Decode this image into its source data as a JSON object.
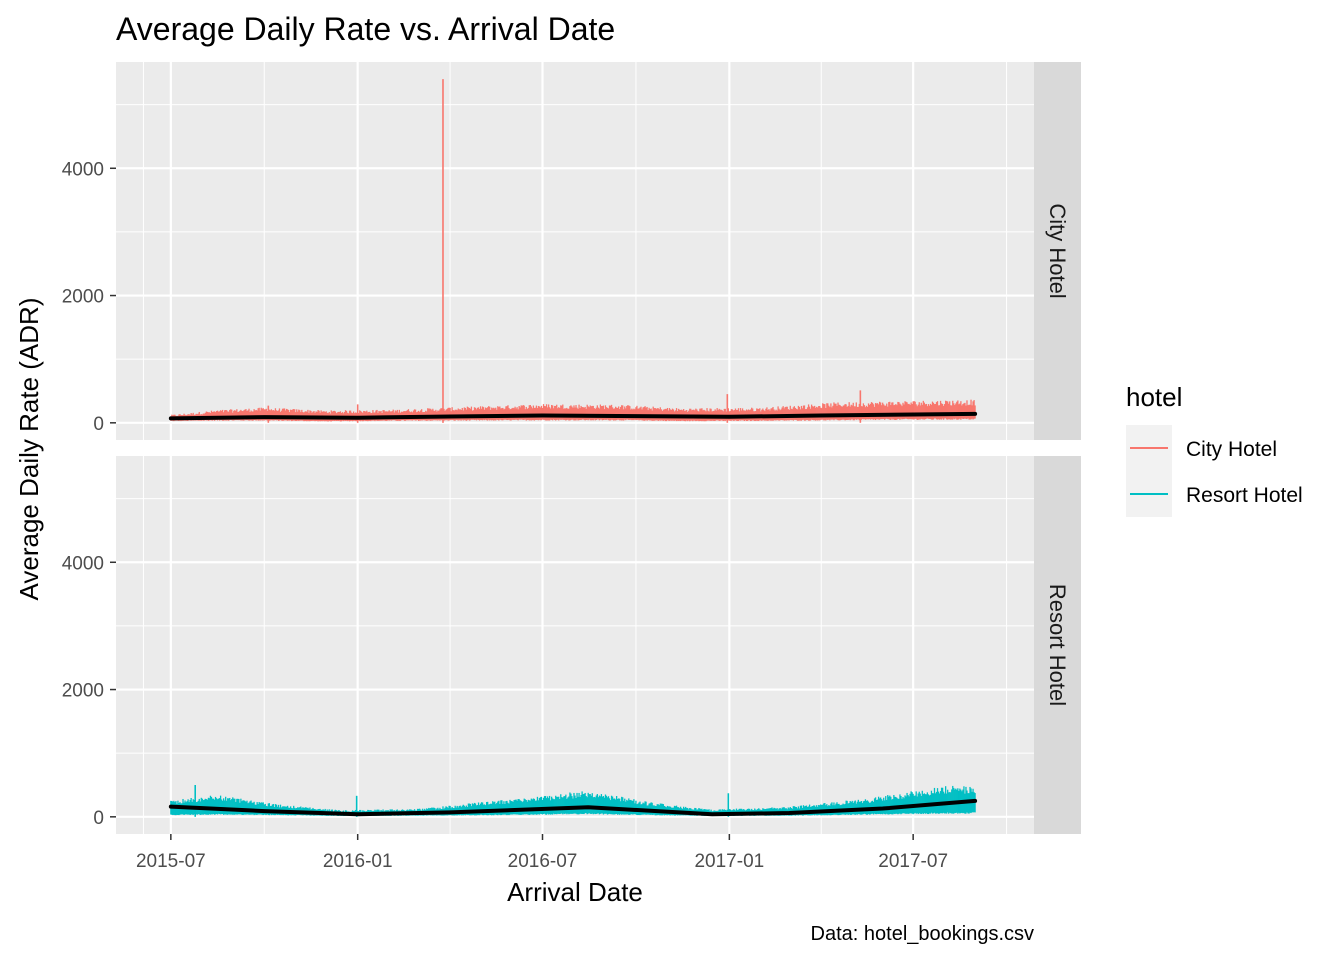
{
  "chart_data": {
    "type": "line",
    "title": "Average Daily Rate vs. Arrival Date",
    "xlabel": "Arrival Date",
    "ylabel": "Average Daily Rate (ADR)",
    "caption": "Data: hotel_bookings.csv",
    "x_range": [
      "2015-05-08",
      "2017-10-28"
    ],
    "y_range": [
      -270,
      5670
    ],
    "x_ticks": [
      "2015-07",
      "2016-01",
      "2016-07",
      "2017-01",
      "2017-07"
    ],
    "y_ticks": [
      0,
      2000,
      4000
    ],
    "grid": true,
    "legend": {
      "title": "hotel",
      "position": "right",
      "entries": [
        {
          "label": "City Hotel",
          "color": "#F8766D"
        },
        {
          "label": "Resort Hotel",
          "color": "#00BFC4"
        }
      ]
    },
    "facets": [
      {
        "label": "City Hotel",
        "color": "#F8766D",
        "date_range": [
          "2015-07-01",
          "2017-08-31"
        ],
        "spikes": [
          {
            "date": "2016-03-25",
            "value": 5400
          },
          {
            "date": "2016-12-30",
            "value": 451
          },
          {
            "date": "2017-05-10",
            "value": 510
          },
          {
            "date": "2016-01-01",
            "value": 290
          },
          {
            "date": "2015-10-05",
            "value": 270
          }
        ],
        "envelope": [
          {
            "date": "2015-07-01",
            "low": 30,
            "high": 110
          },
          {
            "date": "2015-08-15",
            "low": 40,
            "high": 175
          },
          {
            "date": "2015-10-01",
            "low": 40,
            "high": 210
          },
          {
            "date": "2015-12-01",
            "low": 25,
            "high": 170
          },
          {
            "date": "2016-02-01",
            "low": 35,
            "high": 180
          },
          {
            "date": "2016-04-15",
            "low": 40,
            "high": 220
          },
          {
            "date": "2016-07-01",
            "low": 45,
            "high": 260
          },
          {
            "date": "2016-09-15",
            "low": 45,
            "high": 250
          },
          {
            "date": "2016-11-15",
            "low": 30,
            "high": 200
          },
          {
            "date": "2017-02-01",
            "low": 35,
            "high": 210
          },
          {
            "date": "2017-04-15",
            "low": 45,
            "high": 280
          },
          {
            "date": "2017-06-15",
            "low": 55,
            "high": 300
          },
          {
            "date": "2017-08-31",
            "low": 60,
            "high": 320
          }
        ],
        "trend": [
          {
            "date": "2015-07-01",
            "value": 70
          },
          {
            "date": "2015-10-01",
            "value": 90
          },
          {
            "date": "2016-01-01",
            "value": 80
          },
          {
            "date": "2016-04-01",
            "value": 100
          },
          {
            "date": "2016-07-01",
            "value": 115
          },
          {
            "date": "2016-10-01",
            "value": 105
          },
          {
            "date": "2017-01-01",
            "value": 95
          },
          {
            "date": "2017-04-01",
            "value": 115
          },
          {
            "date": "2017-08-31",
            "value": 140
          }
        ]
      },
      {
        "label": "Resort Hotel",
        "color": "#00BFC4",
        "date_range": [
          "2015-07-01",
          "2017-08-31"
        ],
        "spikes": [
          {
            "date": "2015-07-25",
            "value": 500
          },
          {
            "date": "2015-12-31",
            "value": 330
          },
          {
            "date": "2016-12-31",
            "value": 370
          }
        ],
        "envelope": [
          {
            "date": "2015-07-01",
            "low": 30,
            "high": 230
          },
          {
            "date": "2015-08-15",
            "low": 40,
            "high": 300
          },
          {
            "date": "2015-10-15",
            "low": 30,
            "high": 170
          },
          {
            "date": "2015-12-15",
            "low": 15,
            "high": 90
          },
          {
            "date": "2016-03-01",
            "low": 20,
            "high": 110
          },
          {
            "date": "2016-05-15",
            "low": 30,
            "high": 220
          },
          {
            "date": "2016-08-15",
            "low": 50,
            "high": 360
          },
          {
            "date": "2016-10-15",
            "low": 30,
            "high": 200
          },
          {
            "date": "2016-12-15",
            "low": 15,
            "high": 100
          },
          {
            "date": "2017-03-01",
            "low": 20,
            "high": 140
          },
          {
            "date": "2017-05-15",
            "low": 40,
            "high": 250
          },
          {
            "date": "2017-08-10",
            "low": 60,
            "high": 440
          },
          {
            "date": "2017-08-31",
            "low": 60,
            "high": 400
          }
        ],
        "trend": [
          {
            "date": "2015-07-01",
            "value": 160
          },
          {
            "date": "2015-10-01",
            "value": 90
          },
          {
            "date": "2016-01-01",
            "value": 40
          },
          {
            "date": "2016-04-01",
            "value": 70
          },
          {
            "date": "2016-08-15",
            "value": 150
          },
          {
            "date": "2016-12-15",
            "value": 40
          },
          {
            "date": "2017-03-01",
            "value": 60
          },
          {
            "date": "2017-06-01",
            "value": 130
          },
          {
            "date": "2017-08-31",
            "value": 250
          }
        ]
      }
    ]
  }
}
